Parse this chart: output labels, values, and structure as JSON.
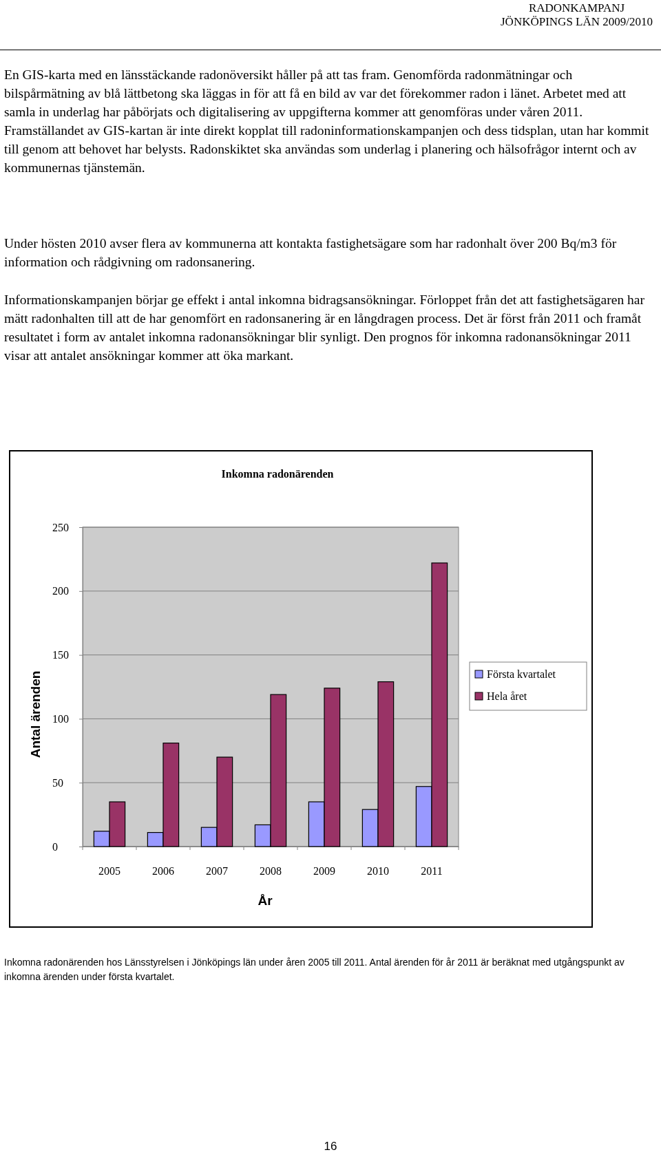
{
  "chart_data": {
    "type": "bar",
    "title": "Inkomna radonärenden",
    "xlabel": "År",
    "ylabel": "Antal ärenden",
    "categories": [
      "2005",
      "2006",
      "2007",
      "2008",
      "2009",
      "2010",
      "2011"
    ],
    "series": [
      {
        "name": "Första kvartalet",
        "color": "#9999ff",
        "values": [
          12,
          11,
          15,
          17,
          35,
          29,
          47
        ]
      },
      {
        "name": "Hela året",
        "color": "#993366",
        "values": [
          35,
          81,
          70,
          119,
          124,
          129,
          222
        ]
      }
    ],
    "ylim": [
      0,
      250
    ],
    "yticks": [
      0,
      50,
      100,
      150,
      200,
      250
    ],
    "grid": "y",
    "legend": "right",
    "annotations": [
      "RADONKAMPANJ",
      "JÖNKÖPINGS LÄN 2009/2010",
      "En GIS-karta med en länsstäckande radonöversikt håller på att tas fram. Genomförda radonmätningar och bilspårmätning av blå lättbetong ska läggas in för att få en bild av var det förekommer radon i länet. Arbetet med att samla in underlag har påbörjats och digitalisering av uppgifterna kommer att genomföras under våren 2011. Framställandet av GIS-kartan är inte direkt kopplat till radoninformationskampanjen och dess tidsplan, utan har kommit till genom att behovet har belysts. Radonskiktet ska användas som underlag i planering och hälsofrågor internt och av kommunernas tjänstemän.",
      "Under hösten 2010 avser flera av kommunerna att kontakta fastighetsägare som har radonhalt över 200 Bq/m3 för information och rådgivning om radonsanering.",
      "Informationskampanjen börjar ge effekt i antal inkomna bidragsansökningar. Förloppet från det att fastighetsägaren har mätt radonhalten till att de har genomfört en radonsanering är en långdragen process. Det är först från 2011 och framåt resultatet i form av antalet inkomna radonansökningar blir synligt. Den prognos för inkomna radonansökningar 2011 visar att antalet ansökningar kommer att öka markant.",
      "Inkomna radonärenden hos Länsstyrelsen i Jönköpings län under åren 2005 till 2011. Antal ärenden för år 2011 är beräknat med utgångspunkt av inkomna ärenden under första kvartalet.",
      "16"
    ]
  }
}
